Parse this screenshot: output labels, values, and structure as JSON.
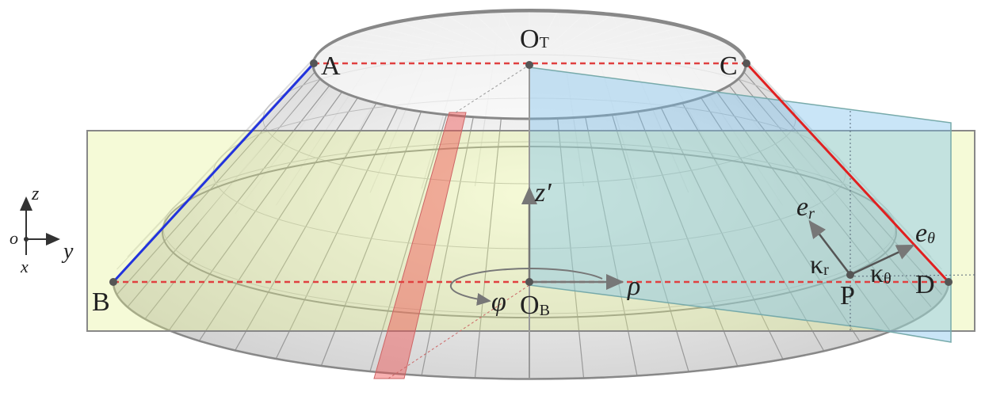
{
  "points": {
    "A": {
      "label": "A"
    },
    "B": {
      "label": "B"
    },
    "C": {
      "label": "C"
    },
    "D": {
      "label": "D"
    },
    "P": {
      "label": "P"
    },
    "OT": {
      "label": "O",
      "sub": "T"
    },
    "OB": {
      "label": "O",
      "sub": "B"
    }
  },
  "symbols": {
    "z_prime": "z′",
    "rho": "ρ",
    "phi": "φ",
    "e_r": {
      "label": "e",
      "sub": "r"
    },
    "e_theta": {
      "label": "e",
      "sub": "θ"
    },
    "kappa_r": {
      "label": "κ",
      "sub": "r"
    },
    "kappa_theta": {
      "label": "κ",
      "sub": "θ"
    }
  },
  "axes": {
    "z": "z",
    "y": "y",
    "x": "x",
    "o": "o"
  }
}
